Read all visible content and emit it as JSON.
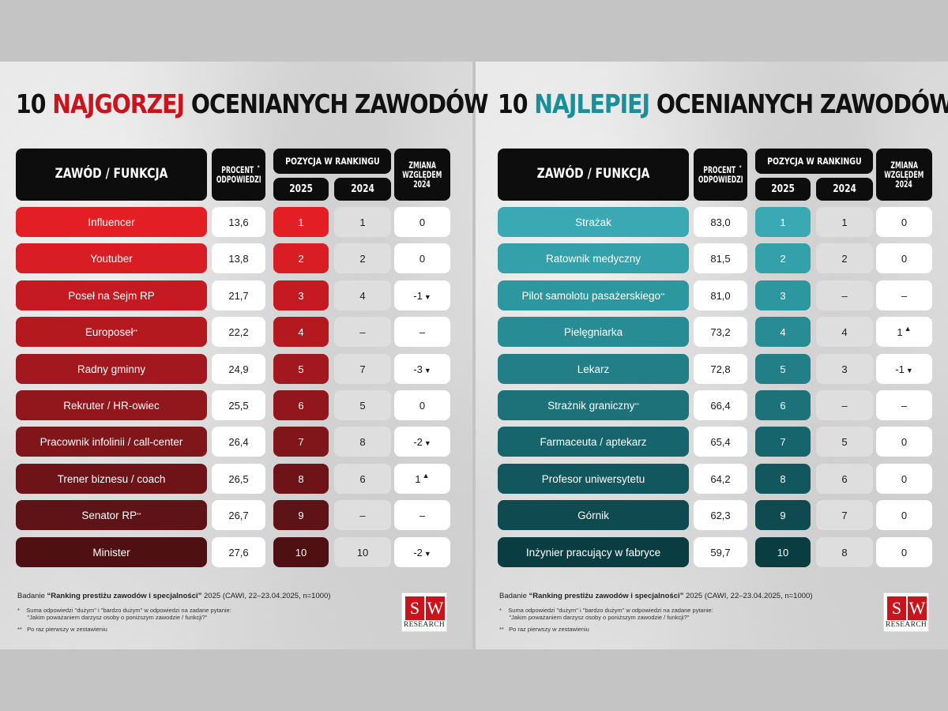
{
  "chart_data": [
    {
      "type": "table",
      "title_prefix": "10 ",
      "title_highlight": "NAJGORZEJ",
      "title_suffix": " OCENIANYCH ZAWODÓW",
      "headers": {
        "occupation": "ZAWÓD / FUNKCJA",
        "percent_line1": "PROCENT",
        "percent_line2": "ODPOWIEDZI",
        "ranking": "POZYCJA W RANKINGU",
        "year_current": "2025",
        "year_previous": "2024",
        "change_line1": "ZMIANA",
        "change_line2": "WZGLĘDEM",
        "change_line3": "2024"
      },
      "rows": [
        {
          "occupation": "Influencer",
          "percent": "13,6",
          "rank_2025": "1",
          "rank_2024": "1",
          "change": "0",
          "arrow": ""
        },
        {
          "occupation": "Youtuber",
          "percent": "13,8",
          "rank_2025": "2",
          "rank_2024": "2",
          "change": "0",
          "arrow": ""
        },
        {
          "occupation": "Poseł na Sejm RP",
          "percent": "21,7",
          "rank_2025": "3",
          "rank_2024": "4",
          "change": "-1",
          "arrow": "down"
        },
        {
          "occupation": "Europoseł",
          "sup": "**",
          "percent": "22,2",
          "rank_2025": "4",
          "rank_2024": "–",
          "change": "–",
          "arrow": ""
        },
        {
          "occupation": "Radny gminny",
          "percent": "24,9",
          "rank_2025": "5",
          "rank_2024": "7",
          "change": "-3",
          "arrow": "down"
        },
        {
          "occupation": "Rekruter / HR-owiec",
          "percent": "25,5",
          "rank_2025": "6",
          "rank_2024": "5",
          "change": "0",
          "arrow": ""
        },
        {
          "occupation": "Pracownik infolinii / call-center",
          "percent": "26,4",
          "rank_2025": "7",
          "rank_2024": "8",
          "change": "-2",
          "arrow": "down"
        },
        {
          "occupation": "Trener biznesu / coach",
          "percent": "26,5",
          "rank_2025": "8",
          "rank_2024": "6",
          "change": "1",
          "arrow": "up"
        },
        {
          "occupation": "Senator RP",
          "sup": "**",
          "percent": "26,7",
          "rank_2025": "9",
          "rank_2024": "–",
          "change": "–",
          "arrow": ""
        },
        {
          "occupation": "Minister",
          "percent": "27,6",
          "rank_2025": "10",
          "rank_2024": "10",
          "change": "-2",
          "arrow": "down"
        }
      ],
      "row_colors": [
        "#e41e25",
        "#d81d24",
        "#c61a22",
        "#b51920",
        "#a3181e",
        "#91171c",
        "#80161a",
        "#6e1418",
        "#5e1316",
        "#4f1013"
      ]
    },
    {
      "type": "table",
      "title_prefix": "10 ",
      "title_highlight": "NAJLEPIEJ",
      "title_suffix": " OCENIANYCH ZAWODÓW",
      "headers": {
        "occupation": "ZAWÓD / FUNKCJA",
        "percent_line1": "PROCENT",
        "percent_line2": "ODPOWIEDZI",
        "ranking": "POZYCJA W RANKINGU",
        "year_current": "2025",
        "year_previous": "2024",
        "change_line1": "ZMIANA",
        "change_line2": "WZGLĘDEM",
        "change_line3": "2024"
      },
      "rows": [
        {
          "occupation": "Strażak",
          "percent": "83,0",
          "rank_2025": "1",
          "rank_2024": "1",
          "change": "0",
          "arrow": ""
        },
        {
          "occupation": "Ratownik medyczny",
          "percent": "81,5",
          "rank_2025": "2",
          "rank_2024": "2",
          "change": "0",
          "arrow": ""
        },
        {
          "occupation": "Pilot samolotu pasażerskiego",
          "sup": "**",
          "percent": "81,0",
          "rank_2025": "3",
          "rank_2024": "–",
          "change": "–",
          "arrow": ""
        },
        {
          "occupation": "Pielęgniarka",
          "percent": "73,2",
          "rank_2025": "4",
          "rank_2024": "4",
          "change": "1",
          "arrow": "up"
        },
        {
          "occupation": "Lekarz",
          "percent": "72,8",
          "rank_2025": "5",
          "rank_2024": "3",
          "change": "-1",
          "arrow": "down"
        },
        {
          "occupation": "Strażnik graniczny",
          "sup": "**",
          "percent": "66,4",
          "rank_2025": "6",
          "rank_2024": "–",
          "change": "–",
          "arrow": ""
        },
        {
          "occupation": "Farmaceuta / aptekarz",
          "percent": "65,4",
          "rank_2025": "7",
          "rank_2024": "5",
          "change": "0",
          "arrow": ""
        },
        {
          "occupation": "Profesor uniwersytetu",
          "percent": "64,2",
          "rank_2025": "8",
          "rank_2024": "6",
          "change": "0",
          "arrow": ""
        },
        {
          "occupation": "Górnik",
          "percent": "62,3",
          "rank_2025": "9",
          "rank_2024": "7",
          "change": "0",
          "arrow": ""
        },
        {
          "occupation": "Inżynier pracujący w fabryce",
          "percent": "59,7",
          "rank_2025": "10",
          "rank_2024": "8",
          "change": "0",
          "arrow": ""
        }
      ],
      "row_colors": [
        "#3aa9b3",
        "#33a0aa",
        "#2d979f",
        "#288c94",
        "#227f87",
        "#1d727a",
        "#17656c",
        "#12575e",
        "#0e4a50",
        "#0a3d42"
      ]
    }
  ],
  "footer": {
    "study_prefix": "Badanie ",
    "study_name": "“Ranking prestiżu zawodów i specjalności”",
    "study_suffix": " 2025 (CAWI, 22–23.04.2025, n=1000)",
    "note1_line1": "Suma odpowiedzi \"dużym\" i \"bardzo dużym\" w odpowiedzi na zadane pytanie:",
    "note1_line2": "\"Jakim poważaniem darzysz osoby o poniższym zawodzie / funkcji?\"",
    "note1_mark": "*",
    "note2_mark": "**",
    "note2": "Po raz pierwszy w zestawieniu"
  },
  "logo": {
    "letter1": "S",
    "letter2": "W",
    "word": "RESEARCH",
    "color": "#c8141c"
  }
}
